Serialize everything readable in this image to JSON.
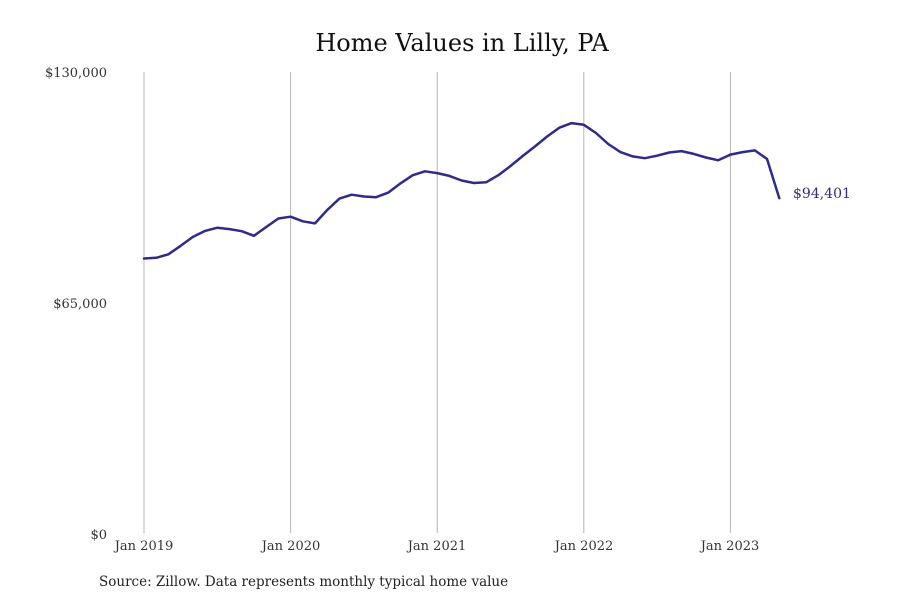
{
  "chart_data": {
    "type": "line",
    "title": "Home Values in Lilly, PA",
    "source": "Source: Zillow. Data represents monthly typical home value",
    "y_ticks": [
      "$0",
      "$65,000",
      "$130,000"
    ],
    "ylim": [
      0,
      130000
    ],
    "grid": "vertical",
    "x_ticks": [
      "Jan 2019",
      "Jan 2020",
      "Jan 2021",
      "Jan 2022",
      "Jan 2023"
    ],
    "end_label": "$94,401",
    "series": [
      {
        "color": "#2d2b8c",
        "x": [
          "2019-01",
          "2019-02",
          "2019-03",
          "2019-04",
          "2019-05",
          "2019-06",
          "2019-07",
          "2019-08",
          "2019-09",
          "2019-10",
          "2019-11",
          "2019-12",
          "2020-01",
          "2020-02",
          "2020-03",
          "2020-04",
          "2020-05",
          "2020-06",
          "2020-07",
          "2020-08",
          "2020-09",
          "2020-10",
          "2020-11",
          "2020-12",
          "2021-01",
          "2021-02",
          "2021-03",
          "2021-04",
          "2021-05",
          "2021-06",
          "2021-07",
          "2021-08",
          "2021-09",
          "2021-10",
          "2021-11",
          "2021-12",
          "2022-01",
          "2022-02",
          "2022-03",
          "2022-04",
          "2022-05",
          "2022-06",
          "2022-07",
          "2022-08",
          "2022-09",
          "2022-10",
          "2022-11",
          "2022-12",
          "2023-01",
          "2023-02",
          "2023-03",
          "2023-04",
          "2023-05"
        ],
        "values": [
          77400,
          77600,
          78600,
          81000,
          83500,
          85200,
          86100,
          85700,
          85100,
          83800,
          86300,
          88700,
          89200,
          87900,
          87300,
          91100,
          94300,
          95400,
          94900,
          94700,
          96000,
          98600,
          100900,
          102000,
          101500,
          100700,
          99400,
          98700,
          98900,
          100900,
          103500,
          106300,
          109000,
          111800,
          114300,
          115600,
          115100,
          112800,
          109700,
          107400,
          106200,
          105700,
          106400,
          107300,
          107700,
          106900,
          105900,
          105100,
          106700,
          107400,
          107900,
          105500,
          94401
        ]
      }
    ]
  }
}
